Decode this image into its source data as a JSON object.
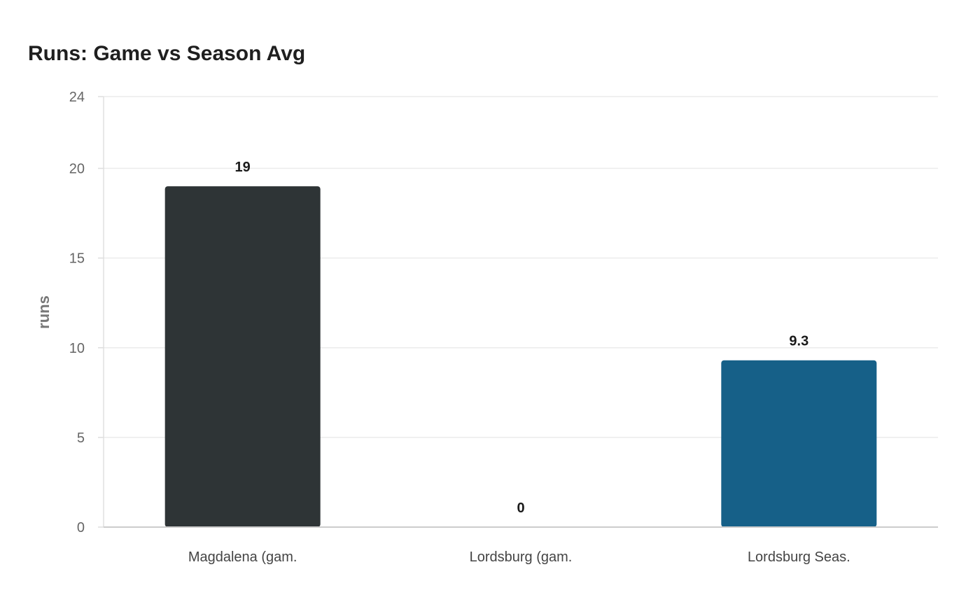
{
  "chart_data": {
    "type": "bar",
    "title": "Runs: Game vs Season Avg",
    "xlabel": "",
    "ylabel": "runs",
    "categories": [
      "Magdalena (gam.",
      "Lordsburg (gam.",
      "Lordsburg Seas."
    ],
    "values": [
      19,
      0,
      9.3
    ],
    "data_labels": [
      "19",
      "0",
      "9.3"
    ],
    "colors": [
      "#2e3436",
      "#2e3436",
      "#166088"
    ],
    "ylim": [
      0,
      24
    ],
    "yticks": [
      0,
      5,
      10,
      15,
      20,
      24
    ],
    "grid": true,
    "legend": "none"
  }
}
